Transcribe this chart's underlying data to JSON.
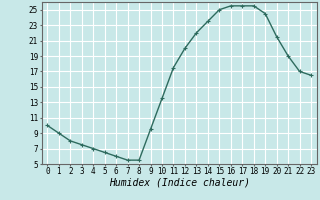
{
  "x": [
    0,
    1,
    2,
    3,
    4,
    5,
    6,
    7,
    8,
    9,
    10,
    11,
    12,
    13,
    14,
    15,
    16,
    17,
    18,
    19,
    20,
    21,
    22,
    23
  ],
  "y": [
    10,
    9,
    8,
    7.5,
    7,
    6.5,
    6,
    5.5,
    5.5,
    9.5,
    13.5,
    17.5,
    20,
    22,
    23.5,
    25,
    25.5,
    25.5,
    25.5,
    24.5,
    21.5,
    19,
    17,
    16.5
  ],
  "line_color": "#2e6b5e",
  "marker": "+",
  "marker_size": 3,
  "bg_color": "#c8e8e8",
  "grid_color": "#ffffff",
  "xlabel": "Humidex (Indice chaleur)",
  "xlabel_style": "italic",
  "xlim": [
    -0.5,
    23.5
  ],
  "ylim": [
    5,
    26
  ],
  "yticks": [
    5,
    7,
    9,
    11,
    13,
    15,
    17,
    19,
    21,
    23,
    25
  ],
  "xticks": [
    0,
    1,
    2,
    3,
    4,
    5,
    6,
    7,
    8,
    9,
    10,
    11,
    12,
    13,
    14,
    15,
    16,
    17,
    18,
    19,
    20,
    21,
    22,
    23
  ],
  "tick_fontsize": 5.5,
  "xlabel_fontsize": 7,
  "line_width": 1.0,
  "marker_color": "#2e6b5e"
}
